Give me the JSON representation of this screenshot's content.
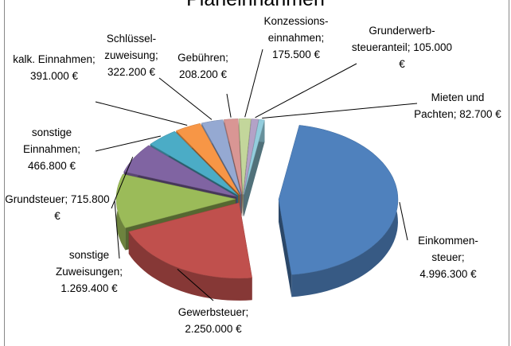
{
  "chart_data": {
    "type": "pie",
    "title": "Planeinnahmen",
    "separator": ";",
    "categories": [
      "Einkommen-steuer",
      "Gewerbsteuer",
      "sonstige Zuweisungen",
      "Grundsteuer",
      "sonstige Einnahmen",
      "kalk. Einnahmen",
      "Schlüssel-zuweisung",
      "Gebühren",
      "Konzessions-einnahmen",
      "Grunderwerb-steueranteil",
      "Mieten und Pachten"
    ],
    "values": [
      4996300,
      2250000,
      1269400,
      715800,
      466800,
      391000,
      322200,
      208200,
      175500,
      105000,
      82700
    ],
    "value_labels": [
      "4.996.300 €",
      "2.250.000 €",
      "1.269.400 €",
      "715.800 €",
      "466.800 €",
      "391.000 €",
      "322.200 €",
      "208.200 €",
      "175.500 €",
      "105.000 €",
      "82.700 €"
    ],
    "colors": [
      "#4f81bd",
      "#c0504d",
      "#9bbb59",
      "#8064a2",
      "#4bacc6",
      "#f79646",
      "#95a9d2",
      "#d99694",
      "#c3d69b",
      "#b3a2c7",
      "#93cddd"
    ]
  }
}
